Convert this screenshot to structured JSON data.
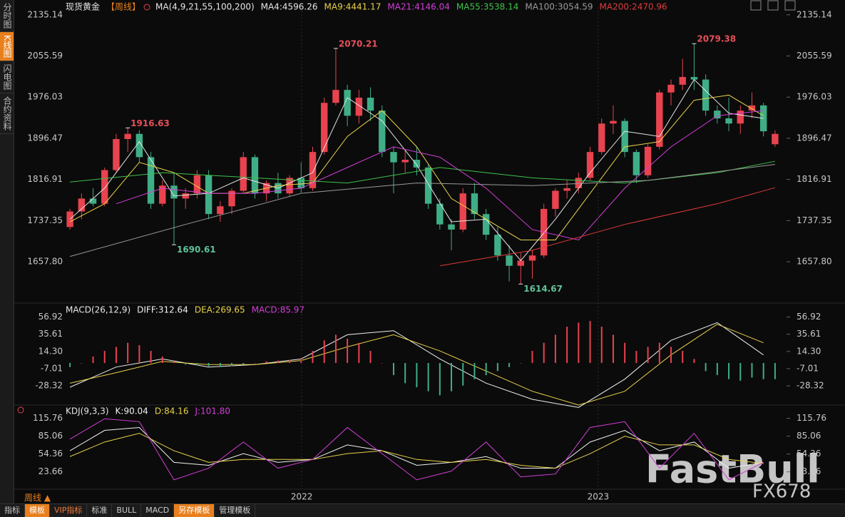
{
  "ui": {
    "sidebar": [
      "分时图",
      "K线图",
      "闪电图",
      "合约资料"
    ],
    "period": "周线 ▲",
    "toolbar": [
      "指标",
      "模板",
      "VIP指标",
      "标准",
      "BULL",
      "MACD",
      "另存模板",
      "管理模板"
    ],
    "watermark": [
      "FastBull",
      "FX678"
    ]
  },
  "chart_data": [
    {
      "type": "candlestick",
      "title": "现货黄金",
      "subtitle": "【周线】",
      "indicator": "MA(4,9,21,55,100,200)",
      "xlim": [
        -0.5,
        61.5
      ],
      "ylim": [
        1600,
        2150
      ],
      "yticks": [
        2135.14,
        2055.59,
        1976.03,
        1896.47,
        1816.91,
        1737.35,
        {
          "value": 1657.8,
          "label": "1657.80"
        }
      ],
      "up_color": "#e8434e",
      "down_color": "#3fae86",
      "candles": [
        [
          1725,
          1760,
          1720,
          1755
        ],
        [
          1755,
          1790,
          1740,
          1780
        ],
        [
          1780,
          1800,
          1765,
          1770
        ],
        [
          1770,
          1840,
          1765,
          1835
        ],
        [
          1835,
          1905,
          1830,
          1895
        ],
        [
          1895,
          1916.63,
          1870,
          1905
        ],
        [
          1905,
          1912,
          1850,
          1860
        ],
        [
          1860,
          1870,
          1760,
          1770
        ],
        [
          1770,
          1815,
          1765,
          1805
        ],
        [
          1805,
          1830,
          1690.61,
          1780
        ],
        [
          1780,
          1800,
          1760,
          1790
        ],
        [
          1790,
          1835,
          1780,
          1825
        ],
        [
          1825,
          1835,
          1740,
          1750
        ],
        [
          1750,
          1775,
          1735,
          1765
        ],
        [
          1765,
          1800,
          1750,
          1795
        ],
        [
          1795,
          1870,
          1790,
          1860
        ],
        [
          1860,
          1865,
          1780,
          1790
        ],
        [
          1790,
          1815,
          1775,
          1810
        ],
        [
          1810,
          1830,
          1780,
          1790
        ],
        [
          1790,
          1825,
          1785,
          1820
        ],
        [
          1820,
          1850,
          1790,
          1800
        ],
        [
          1800,
          1880,
          1795,
          1870
        ],
        [
          1870,
          1975,
          1865,
          1965
        ],
        [
          1965,
          2070.21,
          1960,
          1990
        ],
        [
          1990,
          2000,
          1920,
          1940
        ],
        [
          1940,
          1990,
          1925,
          1975
        ],
        [
          1975,
          1995,
          1930,
          1950
        ],
        [
          1950,
          1960,
          1860,
          1870
        ],
        [
          1870,
          1880,
          1790,
          1850
        ],
        [
          1850,
          1875,
          1830,
          1855
        ],
        [
          1855,
          1880,
          1825,
          1840
        ],
        [
          1840,
          1845,
          1760,
          1770
        ],
        [
          1770,
          1780,
          1720,
          1730
        ],
        [
          1730,
          1740,
          1680,
          1720
        ],
        [
          1720,
          1800,
          1715,
          1790
        ],
        [
          1790,
          1810,
          1740,
          1750
        ],
        [
          1750,
          1760,
          1700,
          1710
        ],
        [
          1710,
          1725,
          1660,
          1670
        ],
        [
          1670,
          1690,
          1620,
          1650
        ],
        [
          1650,
          1675,
          1614.67,
          1660
        ],
        [
          1660,
          1680,
          1625,
          1670
        ],
        [
          1670,
          1770,
          1665,
          1760
        ],
        [
          1760,
          1800,
          1745,
          1795
        ],
        [
          1795,
          1815,
          1780,
          1800
        ],
        [
          1800,
          1830,
          1790,
          1820
        ],
        [
          1820,
          1880,
          1815,
          1870
        ],
        [
          1870,
          1935,
          1865,
          1925
        ],
        [
          1925,
          1960,
          1905,
          1930
        ],
        [
          1930,
          1935,
          1860,
          1870
        ],
        [
          1870,
          1875,
          1810,
          1825
        ],
        [
          1825,
          1885,
          1820,
          1880
        ],
        [
          1880,
          1990,
          1875,
          1985
        ],
        [
          1985,
          2010,
          1960,
          2000
        ],
        [
          2000,
          2050,
          1990,
          2015
        ],
        [
          2015,
          2079.38,
          1990,
          2010
        ],
        [
          2010,
          2020,
          1940,
          1950
        ],
        [
          1950,
          1960,
          1925,
          1935
        ],
        [
          1935,
          1975,
          1910,
          1925
        ],
        [
          1925,
          1960,
          1905,
          1950
        ],
        [
          1950,
          1985,
          1935,
          1960
        ],
        [
          1960,
          1965,
          1900,
          1910
        ],
        [
          1885,
          1912,
          1880,
          1905
        ]
      ],
      "annotations": [
        {
          "x": 5,
          "value": 1916.63
        },
        {
          "x": 9,
          "value": 1690.61
        },
        {
          "x": 23,
          "value": 2070.21
        },
        {
          "x": 39,
          "value": 1614.67
        },
        {
          "x": 54,
          "value": 2079.38
        }
      ],
      "series": [
        {
          "name": "MA4:4596.26",
          "color": "#e6e6e6",
          "x": [
            0,
            3,
            6,
            9,
            12,
            15,
            18,
            21,
            24,
            27,
            30,
            33,
            36,
            39,
            42,
            45,
            48,
            51,
            54,
            57,
            60
          ],
          "values": [
            1740,
            1800,
            1890,
            1785,
            1790,
            1820,
            1800,
            1830,
            1975,
            1930,
            1845,
            1735,
            1740,
            1660,
            1740,
            1830,
            1910,
            1900,
            2010,
            1945,
            1935
          ]
        },
        {
          "name": "MA9:4441.17",
          "color": "#e8d24a",
          "x": [
            0,
            3,
            6,
            9,
            12,
            15,
            18,
            21,
            24,
            27,
            30,
            33,
            36,
            39,
            42,
            45,
            48,
            51,
            54,
            57,
            60
          ],
          "values": [
            1735,
            1770,
            1850,
            1830,
            1790,
            1790,
            1805,
            1810,
            1900,
            1950,
            1880,
            1780,
            1740,
            1700,
            1700,
            1790,
            1880,
            1890,
            1970,
            1980,
            1940
          ]
        },
        {
          "name": "MA21:4146.04",
          "color": "#d23fd8",
          "x": [
            4,
            8,
            12,
            16,
            20,
            24,
            28,
            32,
            36,
            40,
            44,
            48,
            52,
            56,
            60
          ],
          "values": [
            1770,
            1800,
            1790,
            1790,
            1800,
            1840,
            1880,
            1860,
            1800,
            1720,
            1700,
            1800,
            1880,
            1940,
            1950
          ]
        },
        {
          "name": "MA55:3538.14",
          "color": "#3fc24a",
          "x": [
            0,
            8,
            16,
            24,
            32,
            40,
            48,
            56,
            61
          ],
          "values": [
            1812,
            1830,
            1820,
            1810,
            1840,
            1820,
            1810,
            1830,
            1852
          ]
        },
        {
          "name": "MA100:3054.59",
          "color": "#9a9a9a",
          "x": [
            0,
            10,
            20,
            30,
            40,
            50,
            61
          ],
          "values": [
            1668,
            1730,
            1790,
            1810,
            1805,
            1815,
            1846
          ]
        },
        {
          "name": "MA200:2470.96",
          "color": "#e03a3a",
          "x": [
            32,
            40,
            48,
            56,
            61
          ],
          "values": [
            1650,
            1680,
            1730,
            1770,
            1801
          ]
        }
      ]
    },
    {
      "type": "macd",
      "title": "MACD(26,12,9)",
      "xlim": [
        -0.5,
        61.5
      ],
      "ylim": [
        -45,
        68
      ],
      "yticks": [
        56.92,
        35.61,
        {
          "value": 14.3,
          "label": "14.30"
        },
        -7.01,
        -28.32
      ],
      "series": [
        {
          "name": "DIFF:312.64",
          "color": "#f0f0f0",
          "x": [
            0,
            4,
            8,
            12,
            16,
            20,
            24,
            28,
            32,
            36,
            40,
            44,
            48,
            52,
            56,
            60
          ],
          "values": [
            -30,
            -5,
            5,
            -5,
            -2,
            5,
            35,
            40,
            5,
            -25,
            -45,
            -55,
            -20,
            28,
            50,
            10
          ]
        },
        {
          "name": "DEA:269.65",
          "color": "#e8d24a",
          "x": [
            0,
            4,
            8,
            12,
            16,
            20,
            24,
            28,
            32,
            36,
            40,
            44,
            48,
            52,
            56,
            60
          ],
          "values": [
            -25,
            -12,
            2,
            -2,
            -2,
            3,
            20,
            35,
            15,
            -10,
            -35,
            -52,
            -35,
            10,
            48,
            25
          ]
        },
        {
          "name": "MACD:85.97",
          "color": "#d23fd8",
          "type": "bar",
          "up_color": "#e8434e",
          "down_color": "#3fae86",
          "values": [
            -5,
            0,
            8,
            15,
            20,
            25,
            22,
            15,
            8,
            2,
            -2,
            -3,
            -4,
            -5,
            -4,
            -2,
            0,
            2,
            3,
            4,
            6,
            15,
            28,
            35,
            30,
            25,
            15,
            0,
            -15,
            -25,
            -30,
            -35,
            -40,
            -35,
            -28,
            -20,
            -15,
            -10,
            -5,
            0,
            15,
            25,
            35,
            45,
            50,
            52,
            45,
            35,
            25,
            15,
            20,
            25,
            20,
            15,
            5,
            -10,
            -15,
            -20,
            -22,
            -18,
            -20,
            -20
          ]
        }
      ]
    },
    {
      "type": "kdj",
      "title": "KDJ(9,3,3)",
      "xlim": [
        -0.5,
        61.5
      ],
      "ylim": [
        0,
        130
      ],
      "yticks": [
        115.76,
        85.06,
        54.36,
        23.66
      ],
      "xticks": [
        {
          "value": 20.05,
          "label": "2022"
        },
        {
          "value": 45.7,
          "label": "2023"
        }
      ],
      "series": [
        {
          "name": "K:90.04",
          "color": "#f0f0f0",
          "x": [
            0,
            3,
            6,
            9,
            12,
            15,
            18,
            21,
            24,
            27,
            30,
            33,
            36,
            39,
            42,
            45,
            48,
            51,
            54,
            57,
            60
          ],
          "values": [
            60,
            95,
            100,
            40,
            35,
            55,
            40,
            45,
            70,
            60,
            35,
            40,
            50,
            30,
            30,
            75,
            95,
            60,
            75,
            30,
            40
          ]
        },
        {
          "name": "D:84.16",
          "color": "#e8d24a",
          "x": [
            0,
            3,
            6,
            9,
            12,
            15,
            18,
            21,
            24,
            27,
            30,
            33,
            36,
            39,
            42,
            45,
            48,
            51,
            54,
            57,
            60
          ],
          "values": [
            50,
            75,
            90,
            60,
            40,
            45,
            45,
            45,
            55,
            60,
            45,
            40,
            45,
            35,
            30,
            55,
            85,
            70,
            70,
            45,
            38
          ]
        },
        {
          "name": "J:101.80",
          "color": "#d23fd8",
          "x": [
            0,
            3,
            6,
            9,
            12,
            15,
            18,
            21,
            24,
            27,
            30,
            33,
            36,
            39,
            42,
            45,
            48,
            51,
            54,
            57,
            60
          ],
          "values": [
            80,
            115,
            110,
            10,
            30,
            75,
            30,
            45,
            100,
            55,
            10,
            25,
            75,
            15,
            20,
            100,
            110,
            30,
            90,
            10,
            40
          ]
        }
      ]
    }
  ]
}
